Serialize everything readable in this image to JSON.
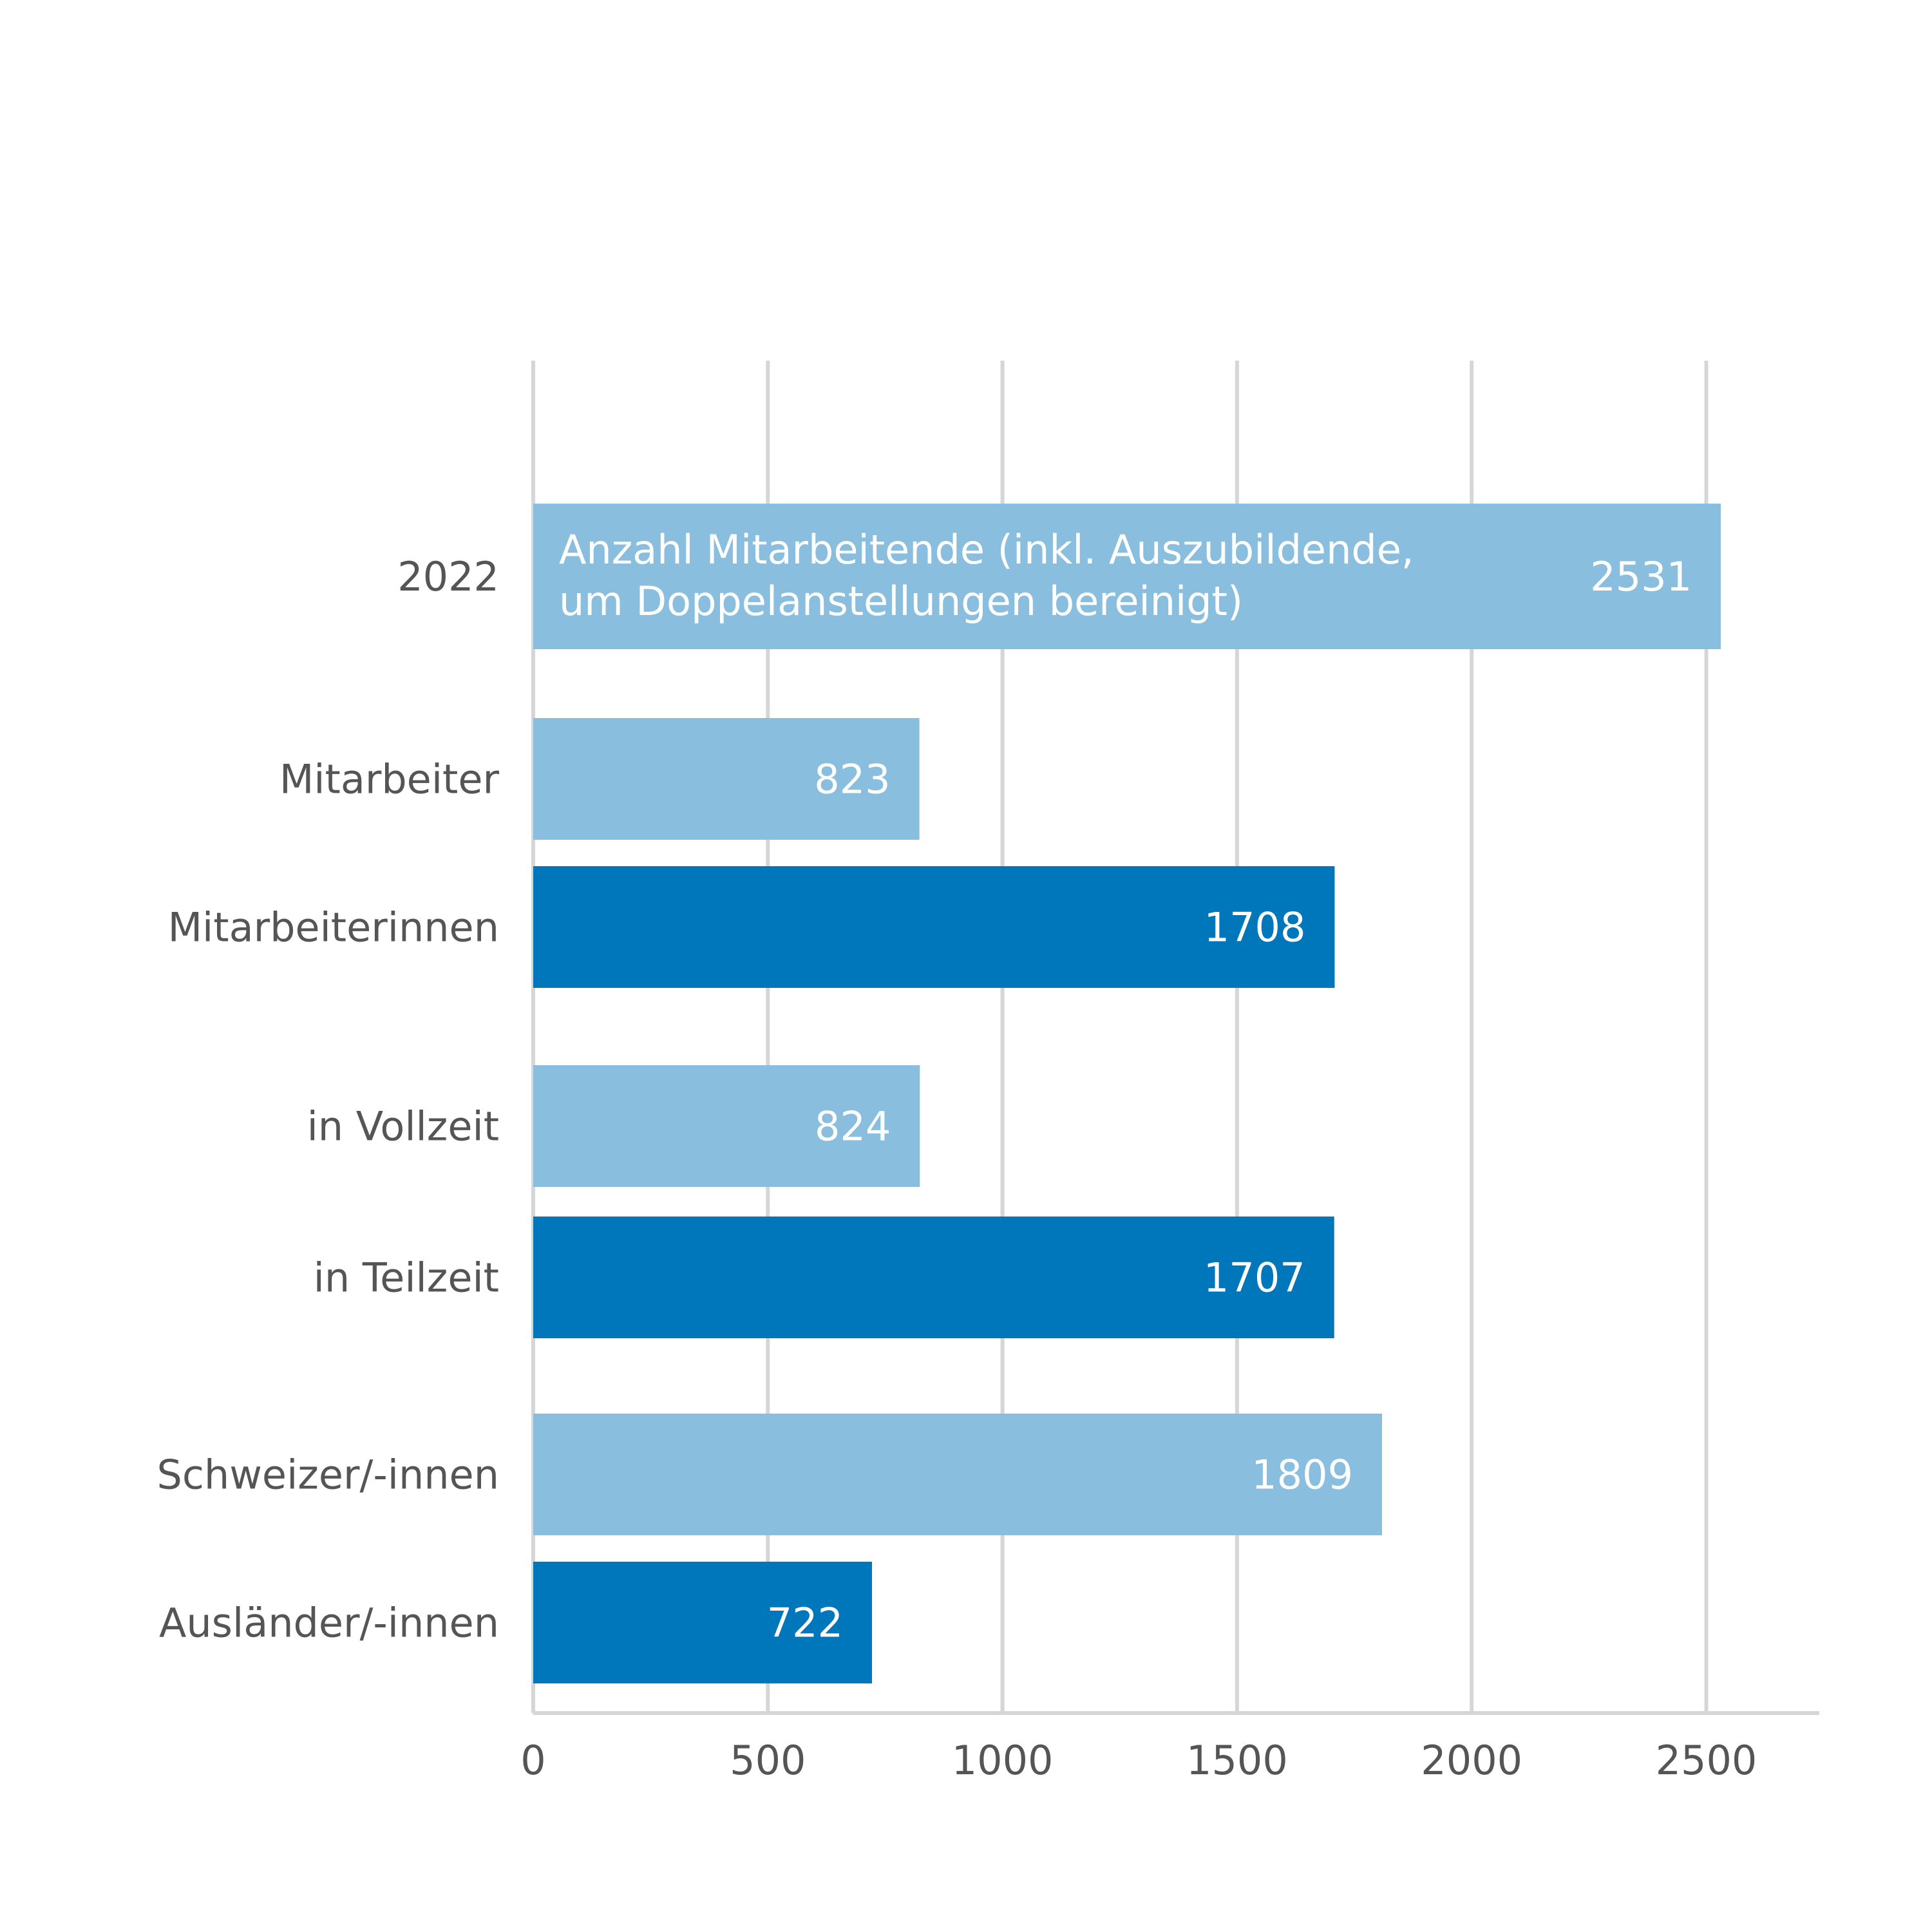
{
  "chart_data": {
    "type": "bar",
    "orientation": "horizontal",
    "categories": [
      "2022",
      "Mitarbeiter",
      "Mitarbeiterinnen",
      "in Vollzeit",
      "in Teilzeit",
      "Schweizer/-innen",
      "Ausländer/-innen"
    ],
    "values": [
      2531,
      823,
      1708,
      824,
      1707,
      1809,
      722
    ],
    "value_labels": [
      "2531",
      "823",
      "1708",
      "824",
      "1707",
      "1809",
      "722"
    ],
    "bar_colors": [
      "#89bedf",
      "#89bedf",
      "#0077bb",
      "#89bedf",
      "#0077bb",
      "#89bedf",
      "#0077bb"
    ],
    "annotation": [
      "Anzahl Mitarbeitende (inkl. Auszubildende,",
      "um Doppelanstellungen bereinigt)"
    ],
    "xticks": [
      0,
      500,
      1000,
      1500,
      2000,
      2500
    ],
    "tick_labels": [
      "0",
      "500",
      "1000",
      "1500",
      "2000",
      "2500"
    ],
    "xlim": [
      0,
      2750
    ],
    "grid": true,
    "colors": {
      "light": "#89bedf",
      "dark": "#0077bb",
      "grid": "#d6d6d6",
      "text": "#555555"
    }
  }
}
